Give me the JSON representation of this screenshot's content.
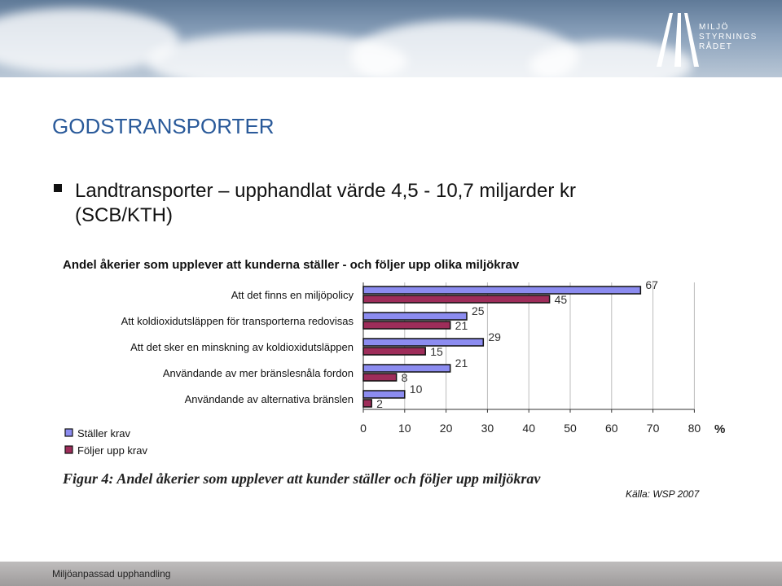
{
  "banner": {
    "logo_lines": [
      "MILJÖ",
      "STYRNINGS",
      "RÅDET"
    ]
  },
  "slide": {
    "title": "GODSTRANSPORTER",
    "bullet_line1": "Landtransporter – upphandlat värde 4,5 - 10,7 miljarder kr",
    "bullet_line2": "(SCB/KTH)",
    "caption": "Figur 4: Andel åkerier som upplever att kunder ställer och följer upp miljökrav",
    "source": "Källa: WSP 2007",
    "footer": "Miljöanpassad upphandling"
  },
  "chart_data": {
    "type": "bar",
    "orientation": "horizontal",
    "title": "Andel åkerier som upplever att kunderna ställer - och följer upp olika miljökrav",
    "categories": [
      "Att det finns en miljöpolicy",
      "Att koldioxidutsläppen för transporterna redovisas",
      "Att det sker en minskning av koldioxidutsläppen",
      "Användande av mer bränslesnåla fordon",
      "Användande av alternativa bränslen"
    ],
    "series": [
      {
        "name": "Ställer krav",
        "color": "#8c8cf0",
        "values": [
          67,
          25,
          29,
          21,
          10
        ]
      },
      {
        "name": "Följer upp krav",
        "color": "#9e2d5a",
        "values": [
          45,
          21,
          15,
          8,
          2
        ]
      }
    ],
    "x_ticks": [
      0,
      10,
      20,
      30,
      40,
      50,
      60,
      70,
      80
    ],
    "xlim": [
      0,
      80
    ],
    "unit_label": "%",
    "grid": true,
    "legend_position": "bottom-left"
  }
}
